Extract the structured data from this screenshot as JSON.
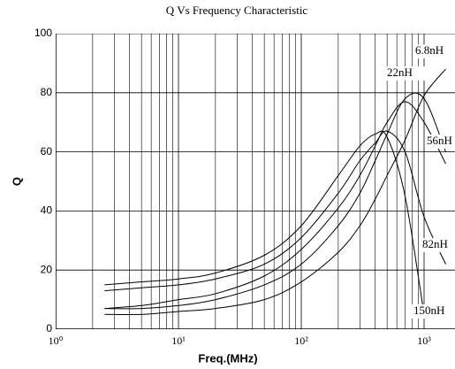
{
  "chart_data": {
    "type": "line",
    "title": "Q Vs Frequency Characteristic",
    "x_label": "Freq.(MHz)",
    "y_label": "Q",
    "x_log": true,
    "grid": true,
    "minor_grid": true,
    "xlim": [
      1,
      1800
    ],
    "ylim": [
      0,
      100
    ],
    "xticks": [
      {
        "value": 1,
        "label": "10⁰"
      },
      {
        "value": 10,
        "label": "10¹"
      },
      {
        "value": 100,
        "label": "10²"
      },
      {
        "value": 1000,
        "label": "10³"
      }
    ],
    "yticks": [
      0,
      20,
      40,
      60,
      80,
      100
    ],
    "x": [
      2.5,
      5,
      10,
      20,
      50,
      100,
      200,
      300,
      400,
      500,
      700,
      1000,
      1500
    ],
    "series": [
      {
        "name": "6.8nH",
        "color": "#000000",
        "values": [
          5,
          5,
          6,
          7,
          10,
          16,
          26,
          35,
          44,
          52,
          64,
          79,
          88
        ]
      },
      {
        "name": "22nH",
        "color": "#000000",
        "values": [
          7,
          7,
          8,
          10,
          15,
          22,
          35,
          46,
          57,
          66,
          78,
          78,
          60
        ]
      },
      {
        "name": "56nH",
        "color": "#000000",
        "values": [
          7,
          8,
          10,
          12,
          18,
          27,
          41,
          52,
          62,
          70,
          77,
          70,
          56
        ]
      },
      {
        "name": "82nH",
        "color": "#000000",
        "values": [
          13,
          14,
          15,
          17,
          22,
          31,
          46,
          57,
          63,
          67,
          60,
          38,
          22
        ]
      },
      {
        "name": "150nH",
        "color": "#000000",
        "values": [
          15,
          16,
          17,
          19,
          25,
          35,
          52,
          62,
          66,
          65,
          45,
          5,
          null
        ]
      }
    ]
  }
}
